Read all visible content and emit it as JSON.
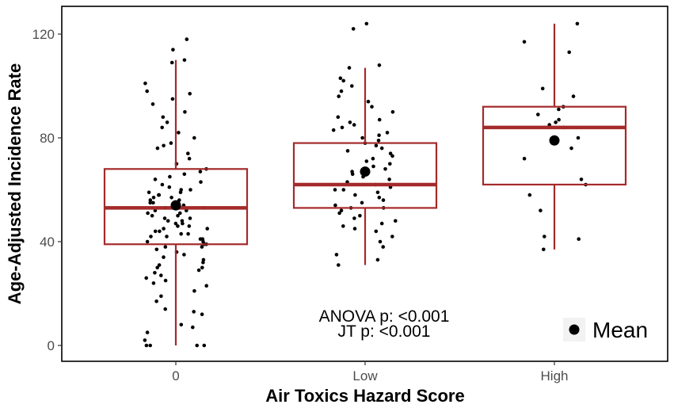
{
  "chart_data": {
    "type": "box",
    "title": "",
    "xlabel": "Air Toxics Hazard Score",
    "ylabel": "Age-Adjusted Incidence Rate",
    "categories": [
      "0",
      "Low",
      "High"
    ],
    "ylim": [
      -6,
      131
    ],
    "yticks": [
      0,
      40,
      80,
      120
    ],
    "grid": false,
    "colors": {
      "box": "#a52a2a",
      "points": "#000000",
      "frame": "#000000"
    },
    "boxes": [
      {
        "category": "0",
        "whisker_low": 0,
        "q1": 39,
        "median": 53,
        "q3": 68,
        "whisker_high": 110,
        "mean": 54
      },
      {
        "category": "Low",
        "whisker_low": 31,
        "q1": 53,
        "median": 62,
        "q3": 78,
        "whisker_high": 107,
        "mean": 67
      },
      {
        "category": "High",
        "whisker_low": 37,
        "q1": 62,
        "median": 84,
        "q3": 92,
        "whisker_high": 124,
        "mean": 79
      }
    ],
    "points": [
      {
        "category": "0",
        "values": [
          0,
          0,
          0,
          0,
          2,
          5,
          7,
          8,
          12,
          13,
          14,
          17,
          19,
          21,
          23,
          24,
          25,
          26,
          27,
          28,
          29,
          30,
          30,
          31,
          32,
          33,
          34,
          35,
          36,
          37,
          38,
          38,
          39,
          39,
          40,
          40,
          41,
          41,
          42,
          42,
          43,
          43,
          44,
          44,
          45,
          45,
          46,
          46,
          47,
          47,
          48,
          48,
          49,
          49,
          50,
          50,
          51,
          51,
          52,
          52,
          53,
          53,
          54,
          54,
          55,
          55,
          56,
          56,
          57,
          57,
          58,
          58,
          59,
          59,
          60,
          60,
          61,
          62,
          63,
          64,
          65,
          66,
          67,
          68,
          70,
          72,
          74,
          76,
          77,
          78,
          80,
          82,
          84,
          86,
          88,
          90,
          93,
          95,
          97,
          98,
          101,
          109,
          110,
          114,
          118
        ]
      },
      {
        "category": "Low",
        "values": [
          31,
          33,
          35,
          38,
          40,
          42,
          44,
          45,
          46,
          47,
          48,
          49,
          50,
          51,
          52,
          53,
          53,
          54,
          55,
          56,
          57,
          58,
          59,
          60,
          60,
          61,
          62,
          62,
          63,
          64,
          65,
          66,
          67,
          68,
          69,
          70,
          71,
          72,
          73,
          74,
          75,
          76,
          77,
          78,
          79,
          80,
          81,
          82,
          83,
          84,
          85,
          86,
          87,
          88,
          90,
          92,
          94,
          96,
          98,
          100,
          102,
          103,
          107,
          108,
          122,
          124
        ]
      },
      {
        "category": "High",
        "values": [
          37,
          41,
          42,
          52,
          58,
          62,
          64,
          72,
          76,
          80,
          84,
          85,
          86,
          87,
          89,
          91,
          92,
          96,
          99,
          113,
          117,
          124
        ]
      }
    ],
    "annotations": [
      "ANOVA p: <0.001",
      "JT p: <0.001"
    ],
    "legend": {
      "entries": [
        "Mean"
      ],
      "position": "bottom-right"
    }
  }
}
